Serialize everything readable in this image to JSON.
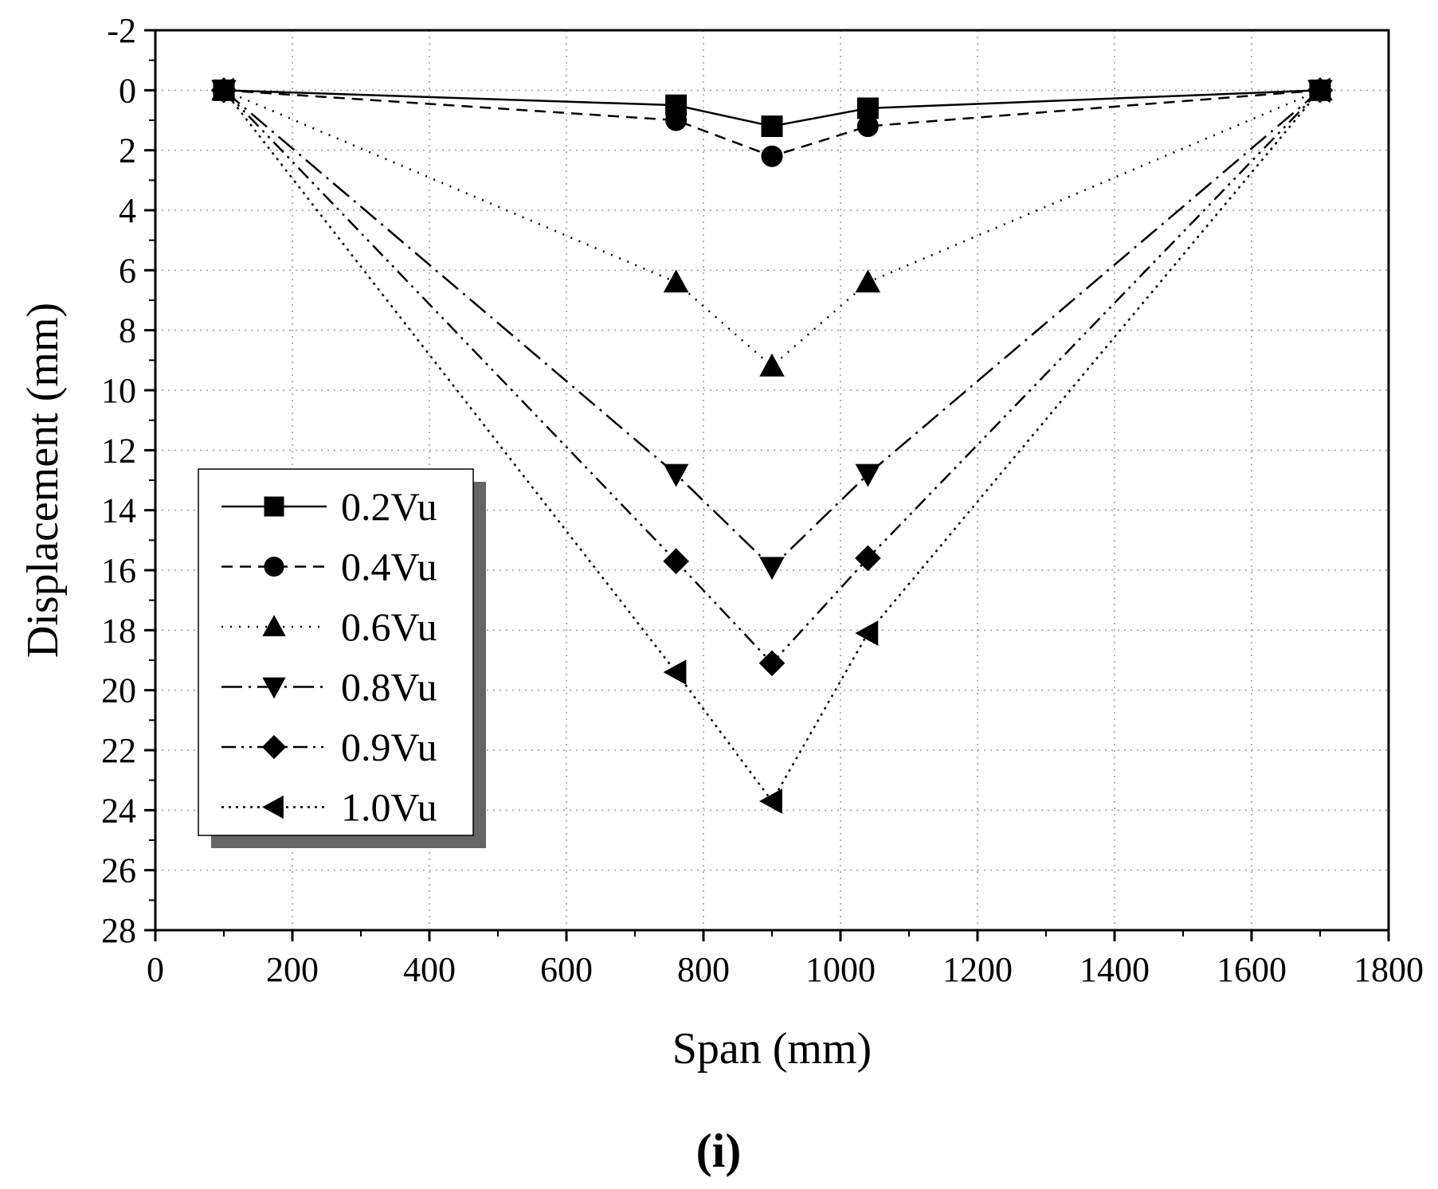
{
  "chart_data": {
    "type": "line",
    "title": "",
    "xlabel": "Span (mm)",
    "ylabel": "Displacement (mm)",
    "xlim": [
      0,
      1800
    ],
    "ylim": [
      -2,
      28
    ],
    "y_inverted": true,
    "x_ticks": [
      0,
      200,
      400,
      600,
      800,
      1000,
      1200,
      1400,
      1600,
      1800
    ],
    "y_ticks": [
      -2,
      0,
      2,
      4,
      6,
      8,
      10,
      12,
      14,
      16,
      18,
      20,
      22,
      24,
      26,
      28
    ],
    "grid": true,
    "legend_position": "lower-left",
    "x": [
      100,
      760,
      900,
      1040,
      1700
    ],
    "series": [
      {
        "name": "0.2Vu",
        "marker": "square",
        "dash": "solid",
        "values": [
          0,
          0.5,
          1.2,
          0.6,
          0
        ]
      },
      {
        "name": "0.4Vu",
        "marker": "circle",
        "dash": "dashed",
        "values": [
          0,
          1.0,
          2.2,
          1.2,
          0
        ]
      },
      {
        "name": "0.6Vu",
        "marker": "triangle-up",
        "dash": "dotted",
        "values": [
          0,
          6.4,
          9.2,
          6.4,
          0
        ]
      },
      {
        "name": "0.8Vu",
        "marker": "triangle-down",
        "dash": "dash-dot",
        "values": [
          0,
          12.8,
          15.9,
          12.8,
          0
        ]
      },
      {
        "name": "0.9Vu",
        "marker": "diamond",
        "dash": "dash-dot-dot",
        "values": [
          0,
          15.7,
          19.1,
          15.6,
          0
        ]
      },
      {
        "name": "1.0Vu",
        "marker": "triangle-left",
        "dash": "short-dot",
        "values": [
          0,
          19.4,
          23.7,
          18.1,
          0
        ]
      }
    ]
  },
  "caption": "(i)"
}
